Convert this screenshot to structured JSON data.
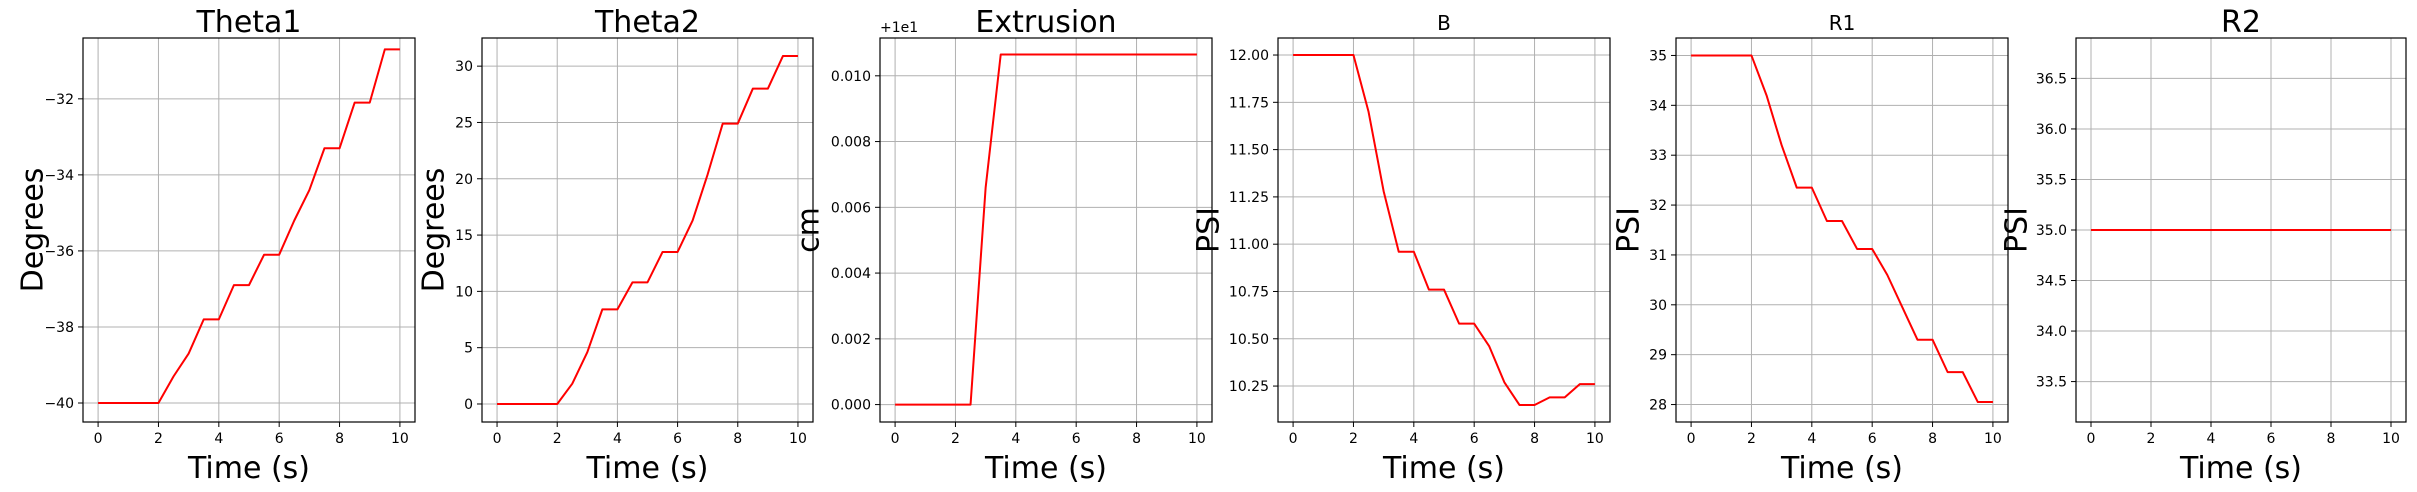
{
  "chart_data": [
    {
      "type": "line",
      "title": "Theta1",
      "title_size": "large",
      "xlabel": "Time (s)",
      "ylabel": "Degrees",
      "xlim": [
        -0.5,
        10.5
      ],
      "ylim": [
        -40.5,
        -30.4
      ],
      "xticks": [
        0,
        2,
        4,
        6,
        8,
        10
      ],
      "yticks": [
        -40,
        -38,
        -36,
        -34,
        -32
      ],
      "ytick_labels": [
        "−40",
        "−38",
        "−36",
        "−34",
        "−32"
      ],
      "grid": true,
      "offset_text": "",
      "series": [
        {
          "color": "#ff0000",
          "x": [
            0,
            2,
            2.5,
            3,
            3.5,
            4,
            4.5,
            5,
            5.5,
            6,
            6.5,
            7,
            7.5,
            8,
            8.5,
            9,
            9.5,
            10
          ],
          "y": [
            -40,
            -40,
            -39.3,
            -38.7,
            -37.8,
            -37.8,
            -36.9,
            -36.9,
            -36.1,
            -36.1,
            -35.2,
            -34.4,
            -33.3,
            -33.3,
            -32.1,
            -32.1,
            -30.7,
            -30.7
          ]
        }
      ]
    },
    {
      "type": "line",
      "title": "Theta2",
      "title_size": "large",
      "xlabel": "Time (s)",
      "ylabel": "Degrees",
      "xlim": [
        -0.5,
        10.5
      ],
      "ylim": [
        -1.6,
        32.5
      ],
      "xticks": [
        0,
        2,
        4,
        6,
        8,
        10
      ],
      "yticks": [
        0,
        5,
        10,
        15,
        20,
        25,
        30
      ],
      "ytick_labels": [
        "0",
        "5",
        "10",
        "15",
        "20",
        "25",
        "30"
      ],
      "grid": true,
      "offset_text": "",
      "series": [
        {
          "color": "#ff0000",
          "x": [
            0,
            2,
            2.5,
            3,
            3.5,
            4,
            4.5,
            5,
            5.5,
            6,
            6.5,
            7,
            7.5,
            8,
            8.5,
            9,
            9.5,
            10
          ],
          "y": [
            0,
            0,
            1.8,
            4.6,
            8.4,
            8.4,
            10.8,
            10.8,
            13.5,
            13.5,
            16.3,
            20.4,
            24.9,
            24.9,
            28,
            28,
            30.9,
            30.9
          ]
        }
      ]
    },
    {
      "type": "line",
      "title": "Extrusion",
      "title_size": "large",
      "xlabel": "Time (s)",
      "ylabel": "cm",
      "xlim": [
        -0.5,
        10.5
      ],
      "ylim": [
        -0.00053,
        0.01115
      ],
      "xticks": [
        0,
        2,
        4,
        6,
        8,
        10
      ],
      "yticks": [
        0,
        0.002,
        0.004,
        0.006,
        0.008,
        0.01
      ],
      "ytick_labels": [
        "0.000",
        "0.002",
        "0.004",
        "0.006",
        "0.008",
        "0.010"
      ],
      "grid": true,
      "offset_text": "+1e1",
      "series": [
        {
          "color": "#ff0000",
          "x": [
            0,
            2.5,
            3,
            3.5,
            10
          ],
          "y": [
            0,
            0,
            0.0066,
            0.01065,
            0.01065
          ]
        }
      ]
    },
    {
      "type": "line",
      "title": "B",
      "title_size": "small",
      "xlabel": "Time (s)",
      "ylabel": "PSI",
      "xlim": [
        -0.5,
        10.5
      ],
      "ylim": [
        10.06,
        12.09
      ],
      "xticks": [
        0,
        2,
        4,
        6,
        8,
        10
      ],
      "yticks": [
        10.25,
        10.5,
        10.75,
        11,
        11.25,
        11.5,
        11.75,
        12
      ],
      "ytick_labels": [
        "10.25",
        "10.50",
        "10.75",
        "11.00",
        "11.25",
        "11.50",
        "11.75",
        "12.00"
      ],
      "grid": true,
      "offset_text": "",
      "series": [
        {
          "color": "#ff0000",
          "x": [
            0,
            2,
            2.5,
            3,
            3.5,
            4,
            4.5,
            5,
            5.5,
            6,
            6.5,
            7,
            7.5,
            8,
            8.5,
            9,
            9.5,
            10
          ],
          "y": [
            12,
            12,
            11.7,
            11.28,
            10.96,
            10.96,
            10.76,
            10.76,
            10.58,
            10.58,
            10.46,
            10.27,
            10.15,
            10.15,
            10.19,
            10.19,
            10.26,
            10.26
          ]
        }
      ]
    },
    {
      "type": "line",
      "title": "R1",
      "title_size": "small",
      "xlabel": "Time (s)",
      "ylabel": "PSI",
      "xlim": [
        -0.5,
        10.5
      ],
      "ylim": [
        27.65,
        35.35
      ],
      "xticks": [
        0,
        2,
        4,
        6,
        8,
        10
      ],
      "yticks": [
        28,
        29,
        30,
        31,
        32,
        33,
        34,
        35
      ],
      "ytick_labels": [
        "28",
        "29",
        "30",
        "31",
        "32",
        "33",
        "34",
        "35"
      ],
      "grid": true,
      "offset_text": "",
      "series": [
        {
          "color": "#ff0000",
          "x": [
            0,
            2,
            2.5,
            3,
            3.5,
            4,
            4.5,
            5,
            5.5,
            6,
            6.5,
            7,
            7.5,
            8,
            8.5,
            9,
            9.5,
            10
          ],
          "y": [
            35,
            35,
            34.2,
            33.2,
            32.35,
            32.35,
            31.68,
            31.68,
            31.12,
            31.12,
            30.6,
            29.95,
            29.3,
            29.3,
            28.65,
            28.65,
            28.05,
            28.05
          ]
        }
      ]
    },
    {
      "type": "line",
      "title": "R2",
      "title_size": "large",
      "xlabel": "Time (s)",
      "ylabel": "PSI",
      "xlim": [
        -0.5,
        10.5
      ],
      "ylim": [
        33.1,
        36.9
      ],
      "xticks": [
        0,
        2,
        4,
        6,
        8,
        10
      ],
      "yticks": [
        33.5,
        34,
        34.5,
        35,
        35.5,
        36,
        36.5
      ],
      "ytick_labels": [
        "33.5",
        "34.0",
        "34.5",
        "35.0",
        "35.5",
        "36.0",
        "36.5"
      ],
      "grid": true,
      "offset_text": "",
      "series": [
        {
          "color": "#ff0000",
          "x": [
            0,
            10
          ],
          "y": [
            35,
            35
          ]
        }
      ]
    }
  ]
}
